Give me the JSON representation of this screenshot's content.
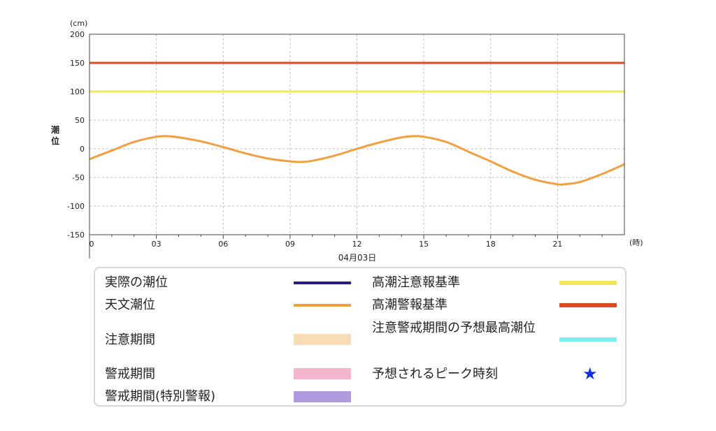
{
  "chart_data": {
    "type": "line",
    "unit_label": "(cm)",
    "ylabel": "潮位",
    "xunit_label": "(時)",
    "date_label": "04月03日",
    "ylim": [
      -150,
      200
    ],
    "yticks": [
      -150,
      -100,
      -50,
      0,
      50,
      100,
      150,
      200
    ],
    "xlim": [
      0,
      24
    ],
    "xticks": [
      0,
      3,
      6,
      9,
      12,
      15,
      18,
      21
    ],
    "xtick_labels": [
      "0",
      "03",
      "06",
      "09",
      "12",
      "15",
      "18",
      "21"
    ],
    "grid": true,
    "series": [
      {
        "name": "天文潮位",
        "color": "#f0a040",
        "x": [
          0,
          1,
          2,
          3,
          3.5,
          4,
          5,
          6,
          7,
          8,
          9,
          9.5,
          10,
          11,
          12,
          13,
          14,
          14.5,
          15,
          16,
          17,
          18,
          19,
          20,
          21,
          21.3,
          22,
          23,
          24
        ],
        "y": [
          -18,
          -3,
          12,
          21,
          22,
          20,
          13,
          3,
          -8,
          -17,
          -22,
          -23,
          -21,
          -12,
          0,
          11,
          20,
          22,
          21,
          12,
          -5,
          -22,
          -40,
          -54,
          -62,
          -62,
          -58,
          -44,
          -27
        ]
      },
      {
        "name": "高潮注意報基準",
        "color": "#f2e65a",
        "y": 100
      },
      {
        "name": "高潮警報基準",
        "color": "#e04a22",
        "y": 150
      }
    ]
  },
  "legend": {
    "actual_tide": {
      "label": "実際の潮位",
      "color": "#2a1a8a"
    },
    "astronomical_tide": {
      "label": "天文潮位",
      "color": "#f0a040"
    },
    "advisory_period": {
      "label": "注意期間",
      "color": "#f7dcb6"
    },
    "warning_period": {
      "label": "警戒期間",
      "color": "#f4b4cc"
    },
    "special_warning_period": {
      "label": "警戒期間(特別警報)",
      "color": "#b09ae0"
    },
    "advisory_standard": {
      "label": "高潮注意報基準",
      "color": "#f2e65a"
    },
    "warning_standard": {
      "label": "高潮警報基準",
      "color": "#e04a22"
    },
    "forecast_max_tide": {
      "label": "注意警戒期間の予想最高潮位",
      "color": "#7af0f0"
    },
    "peak_time": {
      "label": "予想されるピーク時刻",
      "icon": "star-icon",
      "glyph": "★",
      "color": "#1030e0"
    }
  }
}
